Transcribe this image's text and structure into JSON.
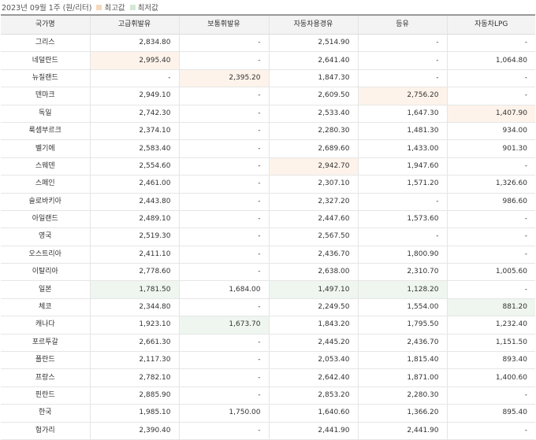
{
  "header": {
    "period": "2023년 09월 1주",
    "unit": "(원/리터)",
    "legend_high": "최고값",
    "legend_low": "최저값",
    "colors": {
      "high": "#f6d9bd",
      "low": "#d2e8d4"
    }
  },
  "table": {
    "columns": [
      "국가명",
      "고급휘발유",
      "보통휘발유",
      "자동차용경유",
      "등유",
      "자동차LPG"
    ],
    "rows": [
      {
        "name": "그리스",
        "vals": [
          "2,834.80",
          "-",
          "2,514.90",
          "-",
          "-"
        ],
        "hl": [
          "",
          "",
          "",
          "",
          ""
        ]
      },
      {
        "name": "네덜란드",
        "vals": [
          "2,995.40",
          "-",
          "2,641.40",
          "-",
          "1,064.80"
        ],
        "hl": [
          "hi",
          "",
          "",
          "",
          ""
        ]
      },
      {
        "name": "뉴질랜드",
        "vals": [
          "-",
          "2,395.20",
          "1,847.30",
          "-",
          "-"
        ],
        "hl": [
          "",
          "hi",
          "",
          "",
          ""
        ]
      },
      {
        "name": "덴마크",
        "vals": [
          "2,949.10",
          "-",
          "2,609.50",
          "2,756.20",
          "-"
        ],
        "hl": [
          "",
          "",
          "",
          "hi",
          ""
        ]
      },
      {
        "name": "독일",
        "vals": [
          "2,742.30",
          "-",
          "2,533.40",
          "1,647.30",
          "1,407.90"
        ],
        "hl": [
          "",
          "",
          "",
          "",
          "hi"
        ]
      },
      {
        "name": "룩셈부르크",
        "vals": [
          "2,374.10",
          "-",
          "2,280.30",
          "1,481.30",
          "934.00"
        ],
        "hl": [
          "",
          "",
          "",
          "",
          ""
        ]
      },
      {
        "name": "벨기에",
        "vals": [
          "2,583.40",
          "-",
          "2,689.60",
          "1,433.00",
          "901.30"
        ],
        "hl": [
          "",
          "",
          "",
          "",
          ""
        ]
      },
      {
        "name": "스웨덴",
        "vals": [
          "2,554.60",
          "-",
          "2,942.70",
          "1,947.60",
          "-"
        ],
        "hl": [
          "",
          "",
          "hi",
          "",
          ""
        ]
      },
      {
        "name": "스페인",
        "vals": [
          "2,461.00",
          "-",
          "2,307.10",
          "1,571.20",
          "1,326.60"
        ],
        "hl": [
          "",
          "",
          "",
          "",
          ""
        ]
      },
      {
        "name": "슬로바키아",
        "vals": [
          "2,443.80",
          "-",
          "2,327.20",
          "-",
          "986.60"
        ],
        "hl": [
          "",
          "",
          "",
          "",
          ""
        ]
      },
      {
        "name": "아일랜드",
        "vals": [
          "2,489.10",
          "-",
          "2,447.60",
          "1,573.60",
          "-"
        ],
        "hl": [
          "",
          "",
          "",
          "",
          ""
        ]
      },
      {
        "name": "영국",
        "vals": [
          "2,519.30",
          "-",
          "2,567.50",
          "-",
          "-"
        ],
        "hl": [
          "",
          "",
          "",
          "",
          ""
        ]
      },
      {
        "name": "오스트리아",
        "vals": [
          "2,411.10",
          "-",
          "2,436.70",
          "1,800.90",
          "-"
        ],
        "hl": [
          "",
          "",
          "",
          "",
          ""
        ]
      },
      {
        "name": "이탈리아",
        "vals": [
          "2,778.60",
          "-",
          "2,638.00",
          "2,310.70",
          "1,005.60"
        ],
        "hl": [
          "",
          "",
          "",
          "",
          ""
        ]
      },
      {
        "name": "일본",
        "vals": [
          "1,781.50",
          "1,684.00",
          "1,497.10",
          "1,128.20",
          "-"
        ],
        "hl": [
          "lo",
          "",
          "lo",
          "lo",
          ""
        ]
      },
      {
        "name": "체코",
        "vals": [
          "2,344.80",
          "-",
          "2,249.50",
          "1,554.00",
          "881.20"
        ],
        "hl": [
          "",
          "",
          "",
          "",
          "lo"
        ]
      },
      {
        "name": "캐나다",
        "vals": [
          "1,923.10",
          "1,673.70",
          "1,843.20",
          "1,795.50",
          "1,232.40"
        ],
        "hl": [
          "",
          "lo",
          "",
          "",
          ""
        ]
      },
      {
        "name": "포르투갈",
        "vals": [
          "2,661.30",
          "-",
          "2,445.20",
          "2,436.70",
          "1,151.50"
        ],
        "hl": [
          "",
          "",
          "",
          "",
          ""
        ]
      },
      {
        "name": "폴란드",
        "vals": [
          "2,117.30",
          "-",
          "2,053.40",
          "1,815.40",
          "893.40"
        ],
        "hl": [
          "",
          "",
          "",
          "",
          ""
        ]
      },
      {
        "name": "프랑스",
        "vals": [
          "2,782.10",
          "-",
          "2,642.40",
          "1,871.00",
          "1,400.60"
        ],
        "hl": [
          "",
          "",
          "",
          "",
          ""
        ]
      },
      {
        "name": "핀란드",
        "vals": [
          "2,885.90",
          "-",
          "2,853.20",
          "2,280.30",
          "-"
        ],
        "hl": [
          "",
          "",
          "",
          "",
          ""
        ]
      },
      {
        "name": "한국",
        "vals": [
          "1,985.10",
          "1,750.00",
          "1,640.60",
          "1,366.20",
          "895.40"
        ],
        "hl": [
          "",
          "",
          "",
          "",
          ""
        ]
      },
      {
        "name": "헝가리",
        "vals": [
          "2,390.40",
          "-",
          "2,441.90",
          "2,441.90",
          "-"
        ],
        "hl": [
          "",
          "",
          "",
          "",
          ""
        ]
      }
    ]
  }
}
